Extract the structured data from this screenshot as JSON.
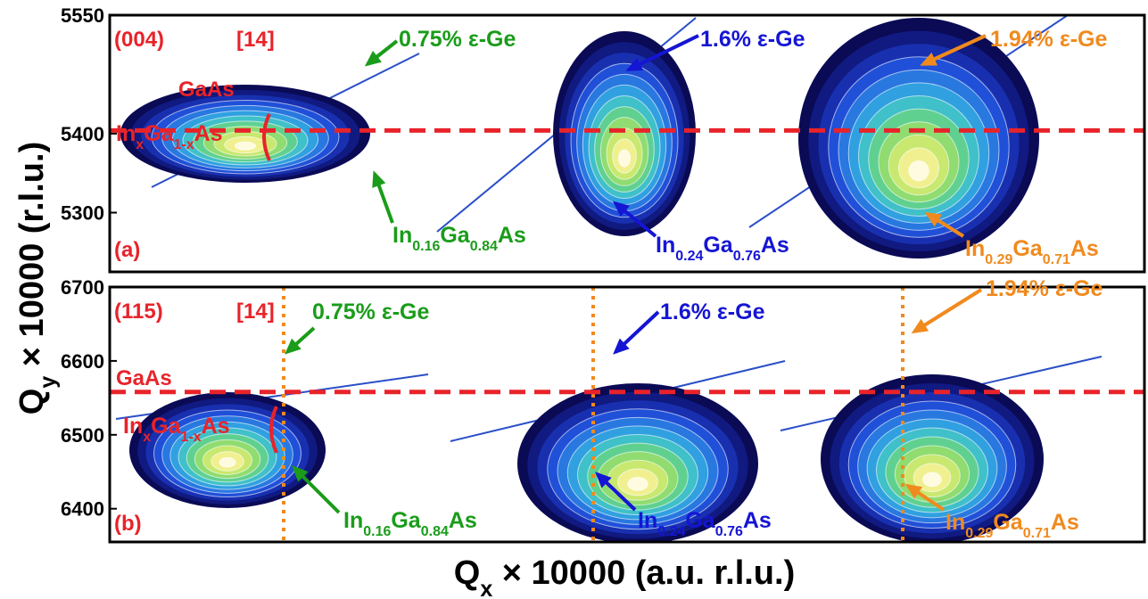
{
  "chart_data": [
    {
      "type": "rsm",
      "panel_label": "(a)",
      "reflection": "(004)",
      "reference": "[14]",
      "ylim": [
        5225,
        5550
      ],
      "yticks": [
        5300,
        5400,
        5550
      ],
      "reference_line": {
        "label": "GaAs",
        "value": 5404,
        "color": "#e8232a"
      },
      "annotations": [
        {
          "text": [
            "In",
            "x",
            "Ga",
            "1-x",
            "As"
          ],
          "color": "#e8232a"
        },
        {
          "text": [
            "0.75% ε-Ge"
          ],
          "color": "#1a9c1a"
        },
        {
          "text": [
            "1.6% ε-Ge"
          ],
          "color": "#1515d4"
        },
        {
          "text": [
            "1.94% ε-Ge"
          ],
          "color": "#f08a1e"
        },
        {
          "text": [
            "In",
            "0.16",
            "Ga",
            "0.84",
            "As"
          ],
          "color": "#1a9c1a"
        },
        {
          "text": [
            "In",
            "0.24",
            "Ga",
            "0.76",
            "As"
          ],
          "color": "#1515d4"
        },
        {
          "text": [
            "In",
            "0.29",
            "Ga",
            "0.71",
            "As"
          ],
          "color": "#f08a1e"
        }
      ]
    },
    {
      "type": "rsm",
      "panel_label": "(b)",
      "reflection": "(115)",
      "reference": "[14]",
      "ylim": [
        6355,
        6700
      ],
      "yticks": [
        6400,
        6500,
        6600,
        6700
      ],
      "reference_line": {
        "label": "GaAs",
        "value": 6558,
        "color": "#e8232a"
      },
      "annotations": [
        {
          "text": [
            "In",
            "x",
            "Ga",
            "1-x",
            "As"
          ],
          "color": "#e8232a"
        },
        {
          "text": [
            "0.75% ε-Ge"
          ],
          "color": "#1a9c1a"
        },
        {
          "text": [
            "1.6% ε-Ge"
          ],
          "color": "#1515d4"
        },
        {
          "text": [
            "1.94% ε-Ge"
          ],
          "color": "#f08a1e"
        },
        {
          "text": [
            "In",
            "0.16",
            "Ga",
            "0.84",
            "As"
          ],
          "color": "#1a9c1a"
        },
        {
          "text": [
            "In",
            "0.24",
            "Ga",
            "0.76",
            "As"
          ],
          "color": "#1515d4"
        },
        {
          "text": [
            "In",
            "0.29",
            "Ga",
            "0.71",
            "As"
          ],
          "color": "#f08a1e"
        }
      ]
    }
  ],
  "y_label": [
    "Q",
    "y",
    " × 10000 (r.l.u.)"
  ],
  "x_label": [
    "Q",
    "x",
    " × 10000 (a.u. r.l.u.)"
  ]
}
